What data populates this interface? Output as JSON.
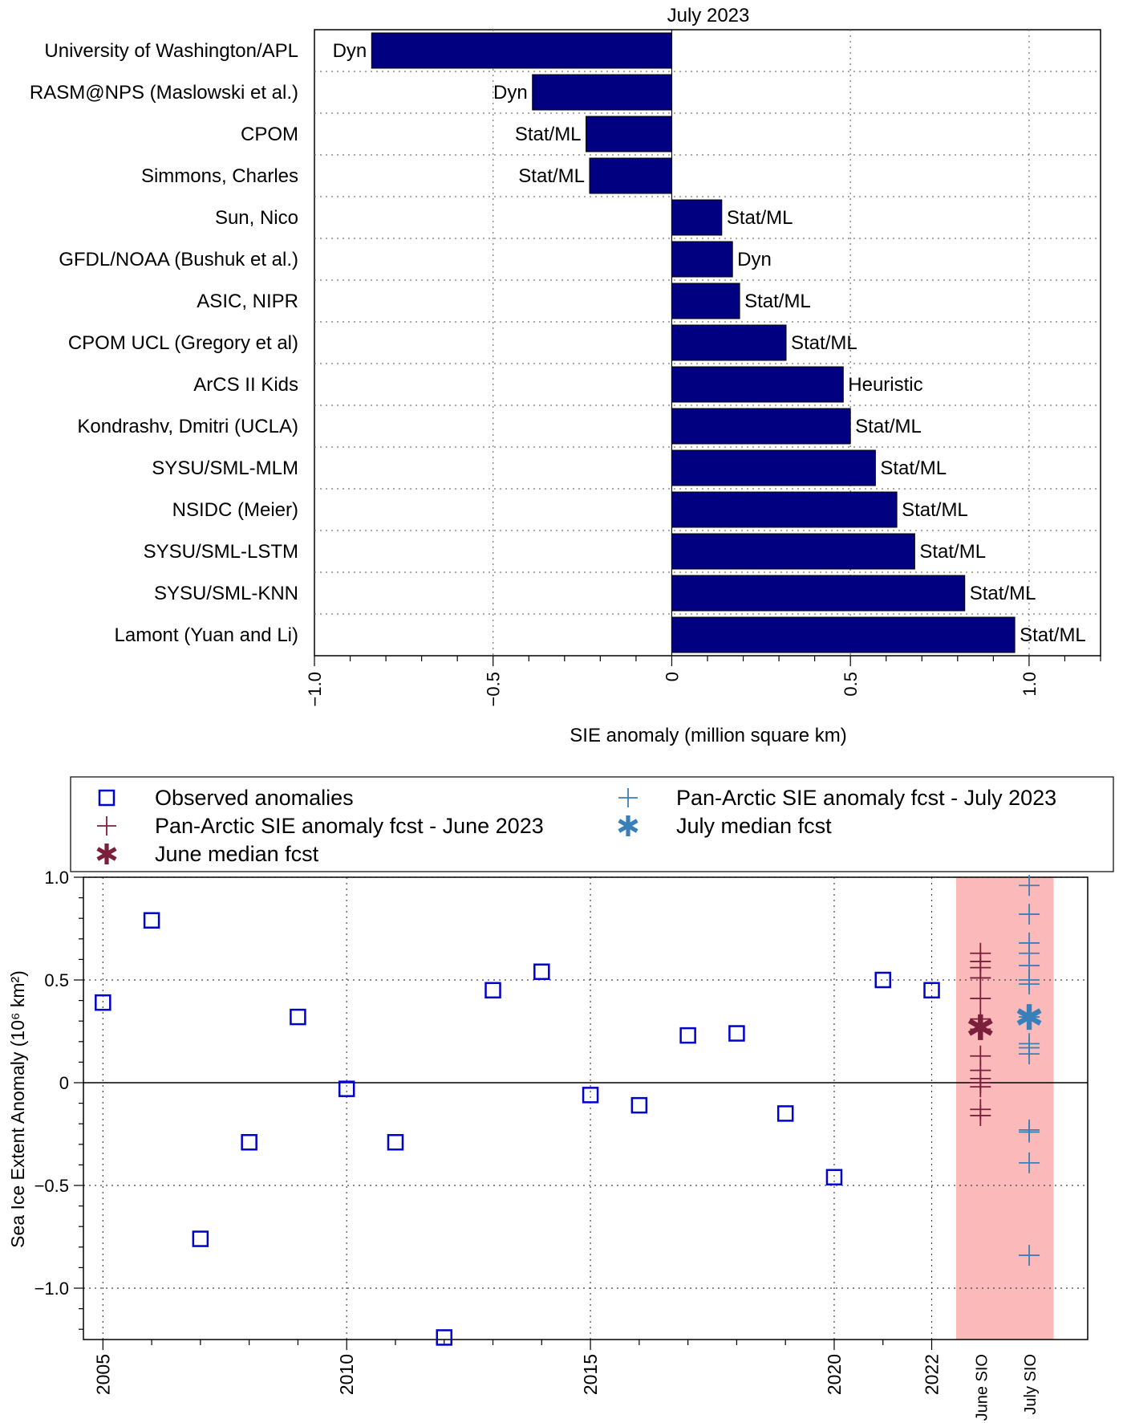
{
  "chart_data": [
    {
      "type": "bar",
      "orientation": "horizontal",
      "title": "July 2023",
      "xlabel": "SIE anomaly (million square km)",
      "xlim": [
        -1.0,
        1.2
      ],
      "xticks": [
        {
          "value": -1.0,
          "label": "−1.0"
        },
        {
          "value": -0.5,
          "label": "−0.5"
        },
        {
          "value": 0,
          "label": "0"
        },
        {
          "value": 0.5,
          "label": "0.5"
        },
        {
          "value": 1.0,
          "label": "1.0"
        }
      ],
      "grid": true,
      "bar_color": "#000080",
      "categories": [
        "University of Washington/APL",
        "RASM@NPS (Maslowski et al.)",
        "CPOM",
        "Simmons, Charles",
        "Sun, Nico",
        "GFDL/NOAA (Bushuk et al.)",
        "ASIC, NIPR",
        "CPOM UCL (Gregory et al)",
        "ArCS II Kids",
        "Kondrashv, Dmitri (UCLA)",
        "SYSU/SML-MLM",
        "NSIDC (Meier)",
        "SYSU/SML-LSTM",
        "SYSU/SML-KNN",
        "Lamont (Yuan and Li)"
      ],
      "values": [
        -0.84,
        -0.39,
        -0.24,
        -0.23,
        0.14,
        0.17,
        0.19,
        0.32,
        0.48,
        0.5,
        0.57,
        0.63,
        0.68,
        0.82,
        0.96
      ],
      "method_labels": [
        "Dyn",
        "Dyn",
        "Stat/ML",
        "Stat/ML",
        "Stat/ML",
        "Dyn",
        "Stat/ML",
        "Stat/ML",
        "Heuristic",
        "Stat/ML",
        "Stat/ML",
        "Stat/ML",
        "Stat/ML",
        "Stat/ML",
        "Stat/ML"
      ]
    },
    {
      "type": "scatter",
      "title": "",
      "ylabel": "Sea Ice Extent Anomaly (10⁶ km²)",
      "ylim": [
        -1.25,
        1.0
      ],
      "yticks": [
        {
          "value": 1.0,
          "label": "1.0"
        },
        {
          "value": 0.5,
          "label": "0.5"
        },
        {
          "value": 0,
          "label": "0"
        },
        {
          "value": -0.5,
          "label": "−0.5"
        },
        {
          "value": -1.0,
          "label": "−1.0"
        }
      ],
      "xlim": [
        2004.6,
        2025.2
      ],
      "xticks": [
        {
          "value": 2005,
          "label": "2005"
        },
        {
          "value": 2010,
          "label": "2010"
        },
        {
          "value": 2015,
          "label": "2015"
        },
        {
          "value": 2020,
          "label": "2020"
        },
        {
          "value": 2022,
          "label": "2022"
        },
        {
          "value": 2023.0,
          "label": "June SIO"
        },
        {
          "value": 2024.0,
          "label": "July SIO"
        }
      ],
      "grid": true,
      "highlight_band": {
        "from": 2022.5,
        "to": 2024.5,
        "color": "#fbb9b9"
      },
      "legend_position": "top",
      "legend": [
        {
          "label": "Observed anomalies",
          "marker": "square",
          "color": "#0000cc"
        },
        {
          "label": "Pan-Arctic SIE anomaly fcst - June 2023",
          "marker": "plus",
          "color": "#7b1f3d"
        },
        {
          "label": "June median fcst",
          "marker": "asterisk",
          "color": "#7b1f3d"
        },
        {
          "label": "Pan-Arctic SIE anomaly fcst - July 2023",
          "marker": "plus",
          "color": "#3a80b8"
        },
        {
          "label": "July median fcst",
          "marker": "asterisk",
          "color": "#3a80b8"
        }
      ],
      "series": [
        {
          "name": "Observed anomalies",
          "x": [
            2005,
            2006,
            2007,
            2008,
            2009,
            2010,
            2011,
            2012,
            2013,
            2014,
            2015,
            2016,
            2017,
            2018,
            2019,
            2020,
            2021,
            2022
          ],
          "y": [
            0.39,
            0.79,
            -0.76,
            -0.29,
            0.32,
            -0.03,
            -0.29,
            -1.24,
            0.45,
            0.54,
            -0.06,
            -0.11,
            0.23,
            0.24,
            -0.15,
            -0.46,
            0.5,
            0.45
          ]
        },
        {
          "name": "Pan-Arctic SIE anomaly fcst - June 2023",
          "x": [
            2023.0,
            2023.0,
            2023.0,
            2023.0,
            2023.0,
            2023.0,
            2023.0,
            2023.0,
            2023.0,
            2023.0,
            2023.0,
            2023.0,
            2023.0,
            2023.0
          ],
          "y": [
            0.63,
            0.59,
            0.56,
            0.51,
            0.41,
            0.31,
            0.26,
            0.13,
            0.06,
            0.02,
            0.0,
            -0.02,
            -0.13,
            -0.16
          ]
        },
        {
          "name": "June median fcst",
          "x": [
            2023.0
          ],
          "y": [
            0.27
          ]
        },
        {
          "name": "Pan-Arctic SIE anomaly fcst - July 2023",
          "x": [
            2024.0,
            2024.0,
            2024.0,
            2024.0,
            2024.0,
            2024.0,
            2024.0,
            2024.0,
            2024.0,
            2024.0,
            2024.0,
            2024.0,
            2024.0,
            2024.0,
            2024.0
          ],
          "y": [
            0.96,
            0.82,
            0.68,
            0.63,
            0.57,
            0.5,
            0.48,
            0.32,
            0.19,
            0.17,
            0.14,
            -0.23,
            -0.24,
            -0.39,
            -0.84
          ]
        },
        {
          "name": "July median fcst",
          "x": [
            2024.0
          ],
          "y": [
            0.32
          ]
        }
      ]
    }
  ]
}
